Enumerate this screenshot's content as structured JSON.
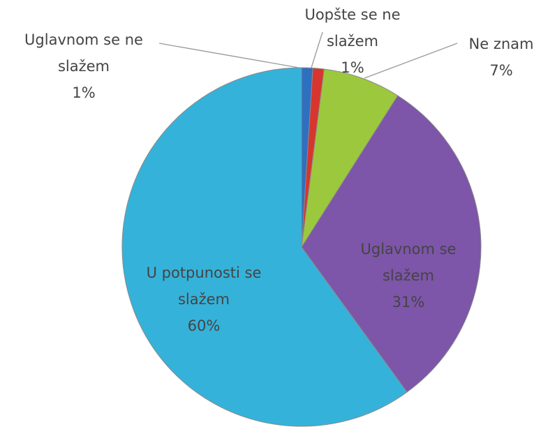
{
  "chart_data": {
    "type": "pie",
    "categories": [
      "Uglavnom se ne slažem",
      "Uopšte se ne slažem",
      "Ne znam",
      "Uglavnom se slažem",
      "U potpunosti se slažem"
    ],
    "values": [
      1,
      1,
      7,
      31,
      60
    ],
    "value_labels": [
      "1%",
      "1%",
      "7%",
      "31%",
      "60%"
    ],
    "colors": [
      "#2f6fc0",
      "#d8352f",
      "#9cc83e",
      "#7d55a9",
      "#35b2da"
    ]
  }
}
